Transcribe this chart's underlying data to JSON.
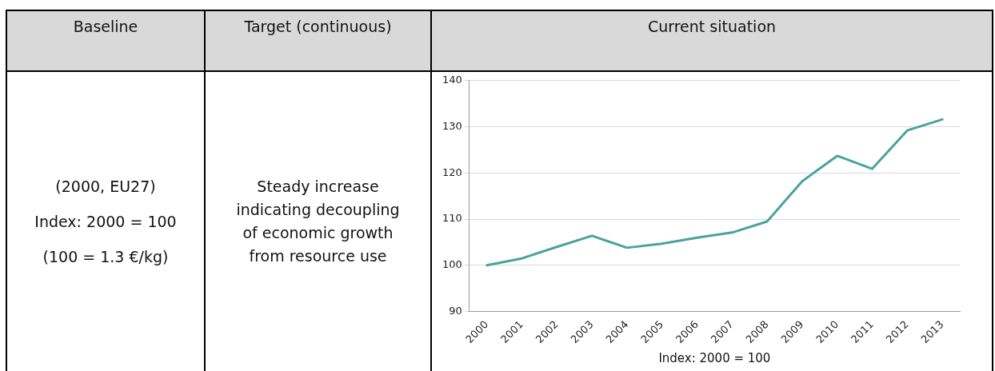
{
  "chart_data": {
    "type": "line",
    "title": "Current situation",
    "xlabel": "Index: 2000 = 100",
    "annotations": [
      "Baseline",
      "Target (continuous)",
      "(2000, EU27)",
      "Index: 2000 = 100",
      "(100 = 1.3 €/kg)",
      "Steady increase indicating decoupling of economic growth from resource use"
    ],
    "categories": [
      "2000",
      "2001",
      "2002",
      "2003",
      "2004",
      "2005",
      "2006",
      "2007",
      "2008",
      "2009",
      "2010",
      "2011",
      "2012",
      "2013"
    ],
    "series": [
      {
        "color": "#4aa3a0",
        "values": [
          100,
          101.5,
          104,
          106.4,
          103.8,
          104.7,
          106,
          107.1,
          109.5,
          118.2,
          123.7,
          120.9,
          129.2,
          131.6
        ]
      }
    ],
    "ylim": [
      90,
      140
    ],
    "yticks": [
      90,
      100,
      110,
      120,
      130,
      140
    ],
    "grid": "y",
    "legend": false,
    "marker": "none",
    "line_style": "solid"
  }
}
